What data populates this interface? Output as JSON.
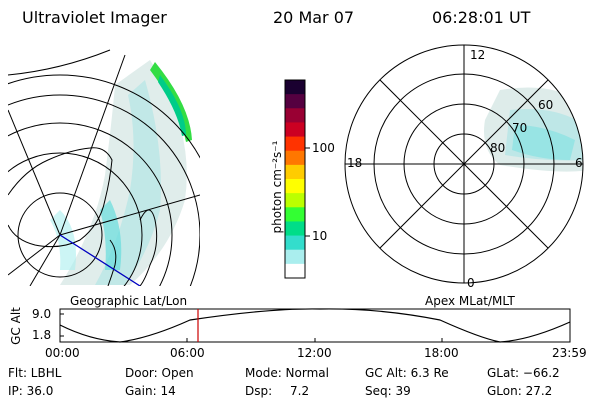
{
  "header": {
    "instrument": "Ultraviolet Imager",
    "date": "20 Mar 07",
    "time": "06:28:01 UT"
  },
  "colorbar": {
    "unit_label": "photon cm⁻²s⁻¹",
    "ticks": [
      "100",
      "10"
    ],
    "colors": [
      "#1a0030",
      "#550040",
      "#990033",
      "#cc0022",
      "#ff3300",
      "#ff7700",
      "#ffcc00",
      "#ffff00",
      "#bbff00",
      "#33ff33",
      "#00dd88",
      "#33ddcc",
      "#aaeeee",
      "#ffffff"
    ]
  },
  "left_map": {
    "caption": "Geographic Lat/Lon"
  },
  "polar_plot": {
    "caption": "Apex MLat/MLT",
    "mlt_labels": [
      "12",
      "18",
      "6",
      "0"
    ],
    "lat_labels": [
      "60",
      "70",
      "80"
    ]
  },
  "timeline": {
    "ylabel": "GC Alt",
    "y_ticks": [
      "9.0",
      "1.8"
    ],
    "x_ticks": [
      "00:00",
      "06:00",
      "12:00",
      "18:00",
      "23:59"
    ],
    "current_time_marker": "06:28"
  },
  "status": {
    "filter": "Flt: LBHL",
    "ip": "IP: 36.0",
    "door": "Door: Open",
    "gain": "Gain: 14",
    "mode": "Mode: Normal",
    "dsp_label": "Dsp:",
    "dsp_value": "7.2",
    "gc_alt": "GC Alt: 6.3 Re",
    "seq": "Seq: 39",
    "glat": "GLat: −66.2",
    "glon": "GLon:  27.2"
  }
}
